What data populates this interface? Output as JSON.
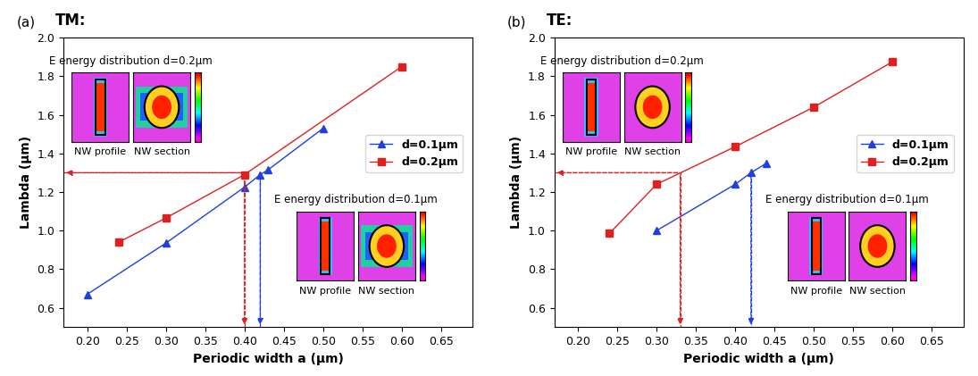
{
  "chart_data": [
    {
      "type": "line",
      "panel": "(a)",
      "title": "TM:",
      "x_label": "Periodic width a (μm)",
      "y_label": "Lambda (μm)",
      "xlim": [
        0.17,
        0.69
      ],
      "ylim": [
        0.5,
        2.0
      ],
      "xticks": [
        {
          "value": 0.2,
          "label": "0.20"
        },
        0.25,
        {
          "value": 0.3,
          "label": "0.30"
        },
        0.35,
        {
          "value": 0.4,
          "label": "0.40"
        },
        0.45,
        {
          "value": 0.5,
          "label": "0.50"
        },
        0.55,
        {
          "value": 0.6,
          "label": "0.60"
        },
        0.65
      ],
      "yticks": [
        0.6,
        0.8,
        {
          "value": 1.0,
          "label": "1.0"
        },
        1.2,
        1.4,
        1.6,
        1.8,
        {
          "value": 2.0,
          "label": "2.0"
        }
      ],
      "legend": "center right",
      "series": [
        {
          "name": "d=0.1μm",
          "color": "#1f3fe0",
          "marker": "triangle",
          "line_style": "solid",
          "x": [
            0.2,
            0.3,
            0.4,
            0.42,
            0.43,
            0.5
          ],
          "values": [
            0.67,
            0.935,
            1.225,
            1.29,
            1.315,
            1.53
          ]
        },
        {
          "name": "d=0.2μm",
          "color": "#e02020",
          "marker": "square",
          "line_style": "solid",
          "x": [
            0.24,
            0.3,
            0.4,
            0.6
          ],
          "values": [
            0.94,
            1.065,
            1.29,
            1.85
          ]
        }
      ],
      "guides": [
        {
          "color": "#e02020",
          "points": [
            [
              0.17,
              1.3
            ],
            [
              0.4,
              1.3
            ],
            [
              0.4,
              0.5
            ]
          ]
        },
        {
          "color": "#1f3fe0",
          "points": [
            [
              0.42,
              1.29
            ],
            [
              0.42,
              0.5
            ]
          ]
        }
      ],
      "insets": [
        {
          "title": "E energy distribution d=0.2μm",
          "labels": [
            "NW profile",
            "NW section"
          ]
        },
        {
          "title": "E energy distribution d=0.1μm",
          "labels": [
            "NW profile",
            "NW section"
          ]
        }
      ]
    },
    {
      "type": "line",
      "panel": "(b)",
      "title": "TE:",
      "x_label": "Periodic width a (μm)",
      "y_label": "Lambda (μm)",
      "xlim": [
        0.17,
        0.69
      ],
      "ylim": [
        0.5,
        2.0
      ],
      "xticks": [
        {
          "value": 0.2,
          "label": "0.20"
        },
        0.25,
        {
          "value": 0.3,
          "label": "0.30"
        },
        0.35,
        {
          "value": 0.4,
          "label": "0.40"
        },
        0.45,
        {
          "value": 0.5,
          "label": "0.50"
        },
        0.55,
        {
          "value": 0.6,
          "label": "0.60"
        },
        0.65
      ],
      "yticks": [
        0.6,
        0.8,
        {
          "value": 1.0,
          "label": "1.0"
        },
        1.2,
        1.4,
        1.6,
        1.8,
        {
          "value": 2.0,
          "label": "2.0"
        }
      ],
      "legend": "center right",
      "series": [
        {
          "name": "d=0.1μm",
          "color": "#1f3fe0",
          "marker": "triangle",
          "line_style": "solid",
          "x": [
            0.3,
            0.4,
            0.42,
            0.44
          ],
          "values": [
            1.0,
            1.24,
            1.3,
            1.35
          ]
        },
        {
          "name": "d=0.2μm",
          "color": "#e02020",
          "marker": "square",
          "line_style": "solid",
          "x": [
            0.24,
            0.3,
            0.4,
            0.5,
            0.6
          ],
          "values": [
            0.985,
            1.24,
            1.435,
            1.64,
            1.875
          ]
        }
      ],
      "guides": [
        {
          "color": "#e02020",
          "points": [
            [
              0.17,
              1.3
            ],
            [
              0.33,
              1.3
            ],
            [
              0.33,
              0.5
            ]
          ]
        },
        {
          "color": "#1f3fe0",
          "points": [
            [
              0.42,
              1.3
            ],
            [
              0.42,
              0.5
            ]
          ]
        }
      ],
      "insets": [
        {
          "title": "E energy distribution d=0.2μm",
          "labels": [
            "NW profile",
            "NW section"
          ]
        },
        {
          "title": "E energy distribution d=0.1μm",
          "labels": [
            "NW profile",
            "NW section"
          ]
        }
      ]
    }
  ]
}
